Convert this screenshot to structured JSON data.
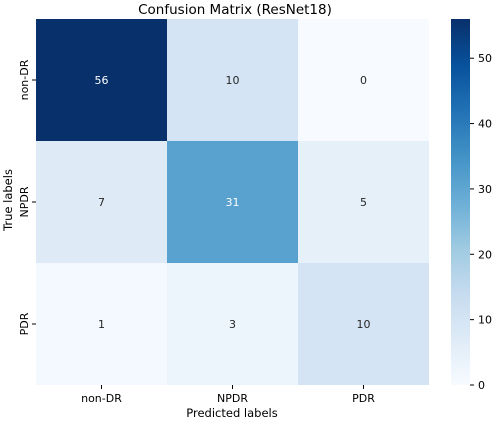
{
  "chart_data": {
    "type": "heatmap",
    "title": "Confusion Matrix (ResNet18)",
    "xlabel": "Predicted labels",
    "ylabel": "True labels",
    "x_categories": [
      "non-DR",
      "NPDR",
      "PDR"
    ],
    "y_categories": [
      "non-DR",
      "NPDR",
      "PDR"
    ],
    "values": [
      [
        56,
        10,
        0
      ],
      [
        7,
        31,
        5
      ],
      [
        1,
        3,
        10
      ]
    ],
    "colorbar": {
      "range": [
        0,
        56
      ],
      "ticks": [
        0,
        10,
        20,
        30,
        40,
        50
      ],
      "colormap": "Blues"
    },
    "colors": {
      "low": "#f7fbff",
      "high": "#08306b",
      "text_dark": "#262626",
      "text_light": "#ffffff"
    }
  }
}
